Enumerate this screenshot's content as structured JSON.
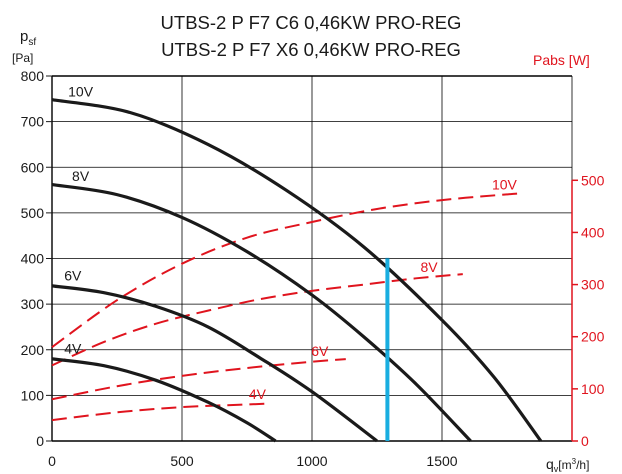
{
  "chart_data": {
    "type": "line",
    "title_lines": [
      "UTBS-2 P F7 C6 0,46KW PRO-REG",
      "UTBS-2 P F7 X6 0,46KW PRO-REG"
    ],
    "y_left_label": "p",
    "y_left_label_sub": "sf",
    "y_left_unit": "[Pa]",
    "y_right_label": "Pabs [W]",
    "x_label": "q",
    "x_label_sub": "v",
    "x_unit_pre": "[m",
    "x_unit_sup": "3",
    "x_unit_post": "/h]",
    "xlim": [
      0,
      2000
    ],
    "ylim_left": [
      0,
      800
    ],
    "ylim_right": [
      0,
      700
    ],
    "x_ticks": [
      "0",
      "500",
      "1000",
      "1500"
    ],
    "x_tick_values": [
      0,
      500,
      1000,
      1500
    ],
    "y_left_ticks": [
      "0",
      "100",
      "200",
      "300",
      "400",
      "500",
      "600",
      "700",
      "800"
    ],
    "y_left_tick_values": [
      0,
      100,
      200,
      300,
      400,
      500,
      600,
      700,
      800
    ],
    "y_right_ticks": [
      "0",
      "100",
      "200",
      "300",
      "400",
      "500"
    ],
    "y_right_tick_values": [
      0,
      100,
      200,
      300,
      400,
      500
    ],
    "grid": true,
    "colors": {
      "pressure": "#1a1a1a",
      "power": "#e0141e",
      "operating": "#19aee0",
      "grid": "#000000"
    },
    "pressure_series": [
      {
        "name": "10V",
        "x": [
          0,
          300,
          600,
          900,
          1200,
          1500,
          1700,
          1880
        ],
        "y": [
          748,
          720,
          650,
          550,
          425,
          265,
          140,
          0
        ]
      },
      {
        "name": "8V",
        "x": [
          0,
          250,
          500,
          750,
          1000,
          1200,
          1400,
          1610
        ],
        "y": [
          562,
          540,
          490,
          415,
          320,
          228,
          125,
          0
        ]
      },
      {
        "name": "6V",
        "x": [
          0,
          200,
          400,
          600,
          800,
          1000,
          1250
        ],
        "y": [
          340,
          325,
          295,
          250,
          182,
          108,
          0
        ]
      },
      {
        "name": "4V",
        "x": [
          0,
          200,
          400,
          600,
          750,
          860
        ],
        "y": [
          180,
          165,
          133,
          85,
          40,
          0
        ]
      }
    ],
    "power_series": [
      {
        "name": "10V",
        "x": [
          0,
          250,
          500,
          750,
          1000,
          1250,
          1500,
          1750,
          1810
        ],
        "y": [
          180,
          270,
          340,
          390,
          420,
          445,
          462,
          473,
          475
        ]
      },
      {
        "name": "8V",
        "x": [
          0,
          200,
          400,
          600,
          800,
          1000,
          1200,
          1400,
          1580
        ],
        "y": [
          145,
          190,
          225,
          250,
          272,
          288,
          300,
          312,
          320
        ]
      },
      {
        "name": "6V",
        "x": [
          0,
          250,
          500,
          750,
          1000,
          1130
        ],
        "y": [
          80,
          105,
          125,
          140,
          152,
          157
        ]
      },
      {
        "name": "4V",
        "x": [
          0,
          250,
          500,
          750,
          840
        ],
        "y": [
          40,
          55,
          65,
          70,
          72
        ]
      }
    ],
    "operating_line": {
      "x": 1290,
      "y": [
        0,
        400
      ],
      "marks_y": [
        200,
        400
      ]
    }
  }
}
